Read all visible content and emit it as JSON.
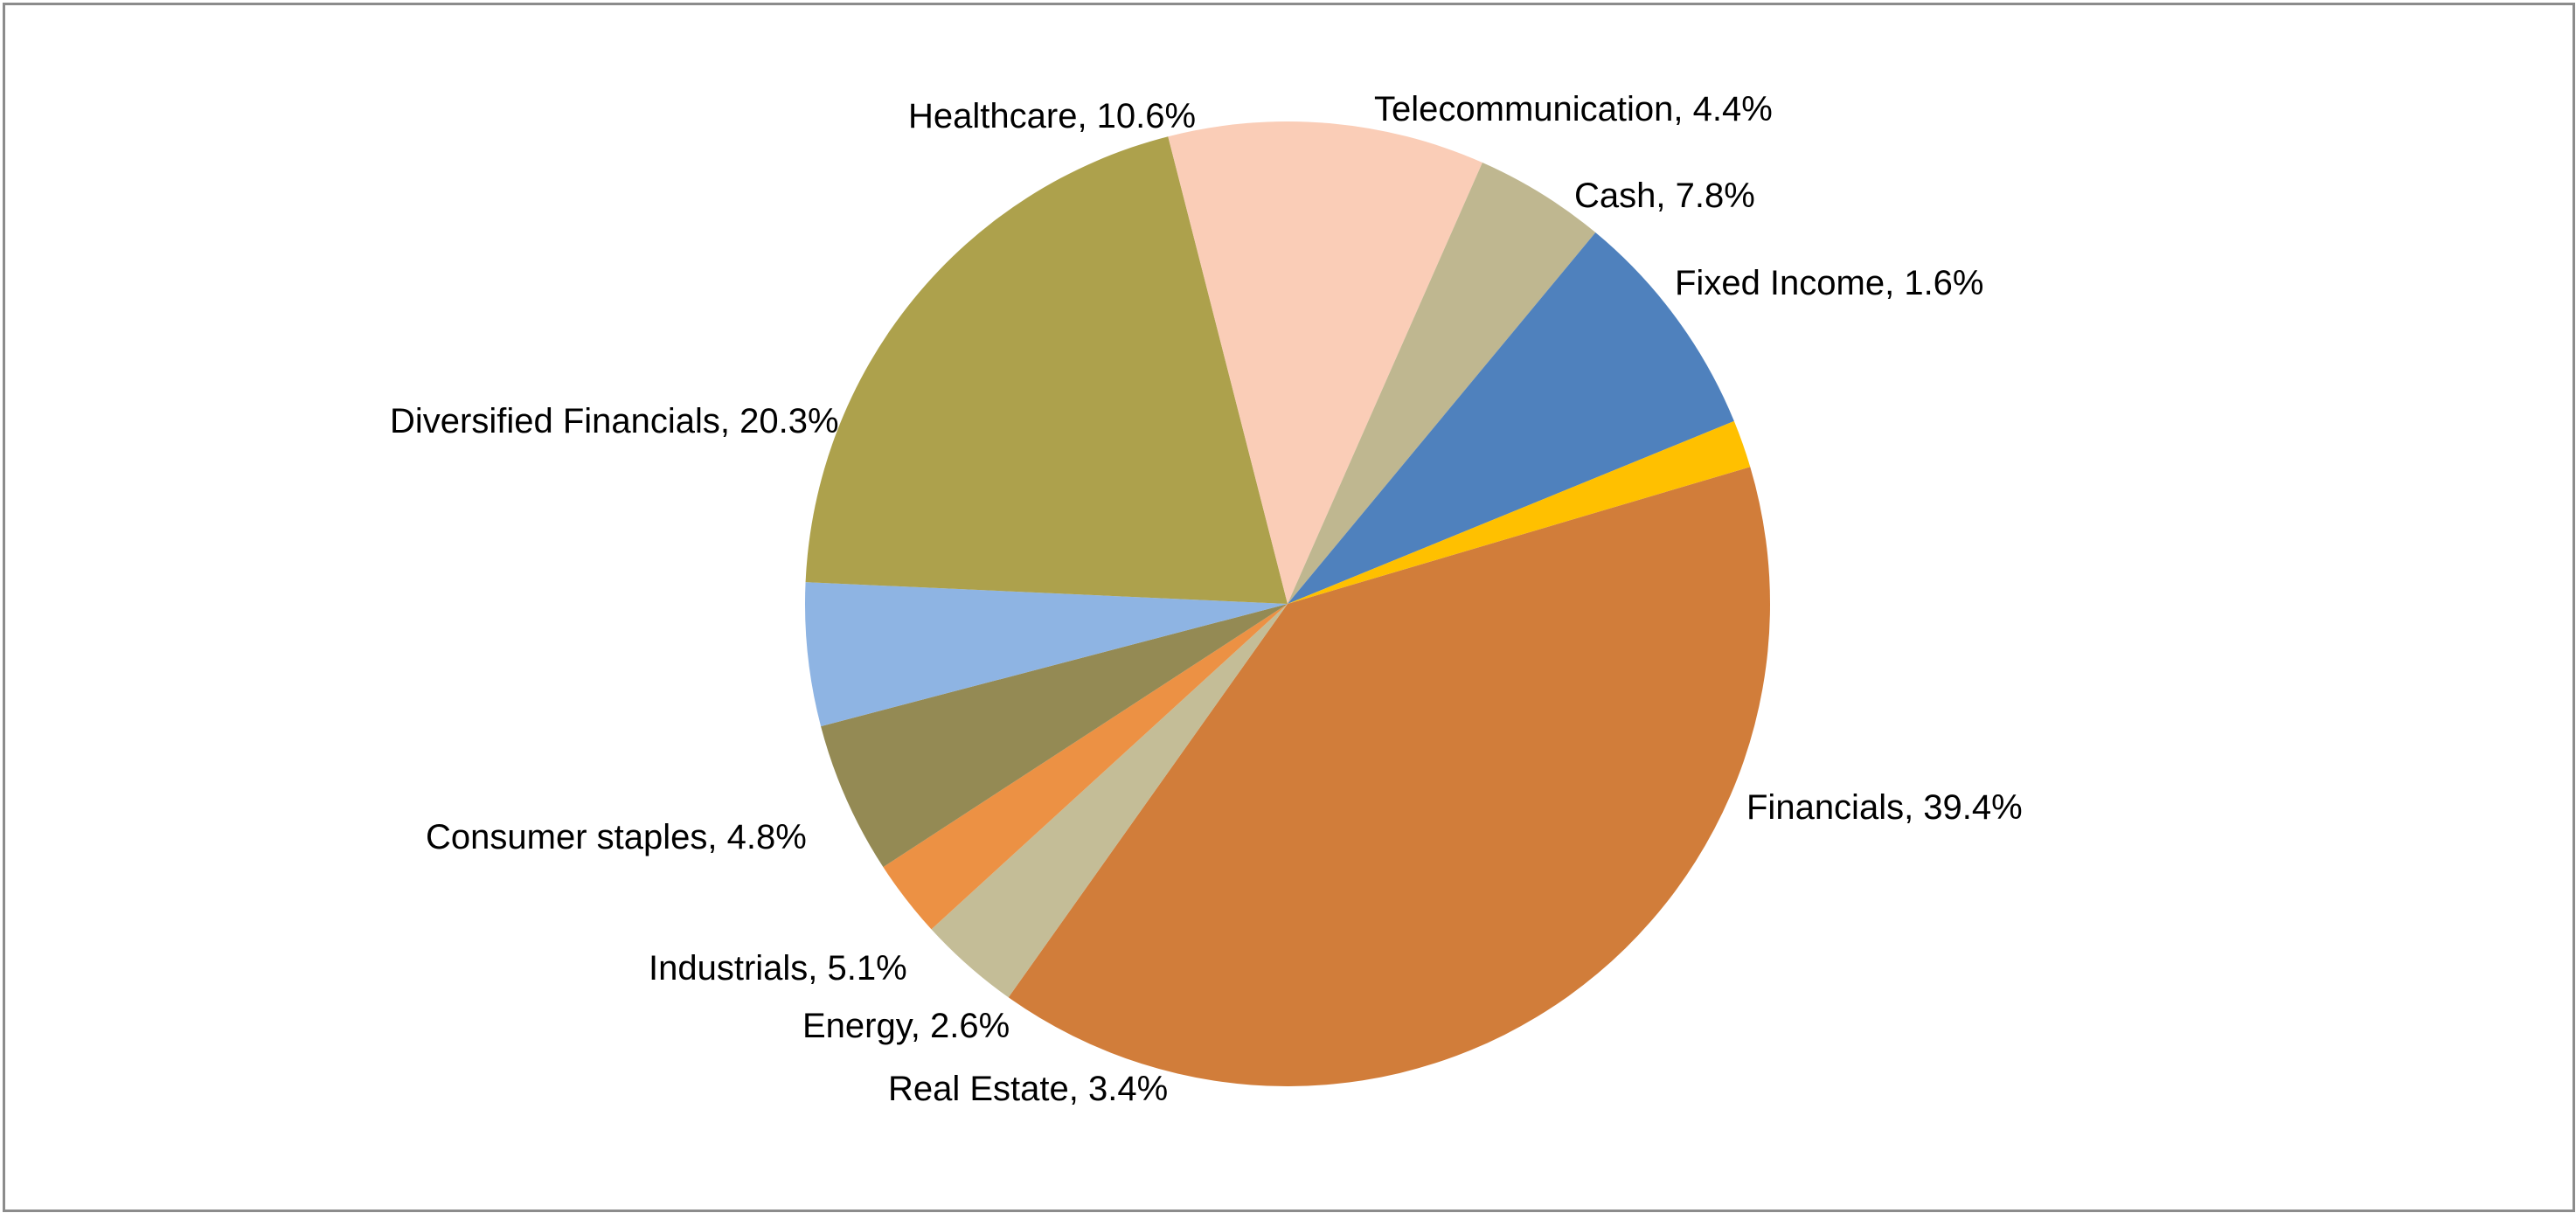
{
  "chart_data": {
    "type": "pie",
    "title": "",
    "legend": "none",
    "slices": [
      {
        "name": "Financials",
        "value": 39.4,
        "label": "Financials, 39.4%",
        "color": "#D17D3A"
      },
      {
        "name": "Real Estate",
        "value": 3.4,
        "label": "Real Estate, 3.4%",
        "color": "#C4BD97"
      },
      {
        "name": "Energy",
        "value": 2.6,
        "label": "Energy, 2.6%",
        "color": "#EC9144"
      },
      {
        "name": "Industrials",
        "value": 5.1,
        "label": "Industrials, 5.1%",
        "color": "#948A54"
      },
      {
        "name": "Consumer staples",
        "value": 4.8,
        "label": "Consumer staples, 4.8%",
        "color": "#8EB4E3"
      },
      {
        "name": "Diversified Financials",
        "value": 20.3,
        "label": "Diversified Financials, 20.3%",
        "color": "#ADA14C"
      },
      {
        "name": "Healthcare",
        "value": 10.6,
        "label": "Healthcare, 10.6%",
        "color": "#FACDB7"
      },
      {
        "name": "Telecommunication",
        "value": 4.4,
        "label": "Telecommunication, 4.4%",
        "color": "#BFB790"
      },
      {
        "name": "Cash",
        "value": 7.8,
        "label": "Cash, 7.8%",
        "color": "#4F81BD"
      },
      {
        "name": "Fixed Income",
        "value": 1.6,
        "label": "Fixed Income, 1.6%",
        "color": "#FFC000"
      }
    ]
  }
}
